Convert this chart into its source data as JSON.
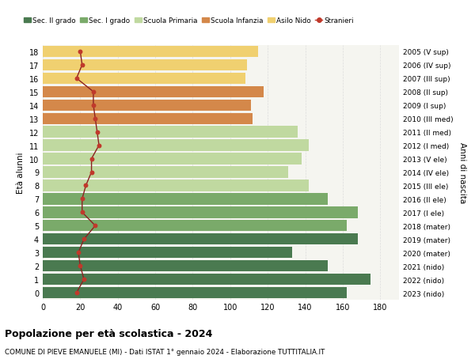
{
  "ages": [
    18,
    17,
    16,
    15,
    14,
    13,
    12,
    11,
    10,
    9,
    8,
    7,
    6,
    5,
    4,
    3,
    2,
    1,
    0
  ],
  "years": [
    "2005 (V sup)",
    "2006 (IV sup)",
    "2007 (III sup)",
    "2008 (II sup)",
    "2009 (I sup)",
    "2010 (III med)",
    "2011 (II med)",
    "2012 (I med)",
    "2013 (V ele)",
    "2014 (IV ele)",
    "2015 (III ele)",
    "2016 (II ele)",
    "2017 (I ele)",
    "2018 (mater)",
    "2019 (mater)",
    "2020 (mater)",
    "2021 (nido)",
    "2022 (nido)",
    "2023 (nido)"
  ],
  "bar_values": [
    162,
    175,
    152,
    133,
    168,
    162,
    168,
    152,
    142,
    131,
    138,
    142,
    136,
    112,
    111,
    118,
    108,
    109,
    115
  ],
  "stranieri": [
    18,
    22,
    20,
    19,
    22,
    28,
    21,
    21,
    23,
    26,
    26,
    30,
    29,
    28,
    27,
    27,
    18,
    21,
    20
  ],
  "bar_colors": [
    "#4a7a50",
    "#4a7a50",
    "#4a7a50",
    "#4a7a50",
    "#4a7a50",
    "#7aaa6a",
    "#7aaa6a",
    "#7aaa6a",
    "#c0d9a0",
    "#c0d9a0",
    "#c0d9a0",
    "#c0d9a0",
    "#c0d9a0",
    "#d4884a",
    "#d4884a",
    "#d4884a",
    "#f0d070",
    "#f0d070",
    "#f0d070"
  ],
  "legend_labels": [
    "Sec. II grado",
    "Sec. I grado",
    "Scuola Primaria",
    "Scuola Infanzia",
    "Asilo Nido",
    "Stranieri"
  ],
  "legend_colors": [
    "#4a7a50",
    "#7aaa6a",
    "#c0d9a0",
    "#d4884a",
    "#f0d070",
    "#c0392b"
  ],
  "stranieri_color": "#c0392b",
  "stranieri_line_color": "#8b2020",
  "title": "Popolazione per età scolastica - 2024",
  "subtitle": "COMUNE DI PIEVE EMANUELE (MI) - Dati ISTAT 1° gennaio 2024 - Elaborazione TUTTITALIA.IT",
  "ylabel_left": "Età alunni",
  "ylabel_right": "Anni di nascita",
  "xlim": [
    0,
    190
  ],
  "xticks": [
    0,
    20,
    40,
    60,
    80,
    100,
    120,
    140,
    160,
    180
  ],
  "bg_color": "#ffffff",
  "plot_bg": "#f5f5f0",
  "grid_color": "#dddddd"
}
